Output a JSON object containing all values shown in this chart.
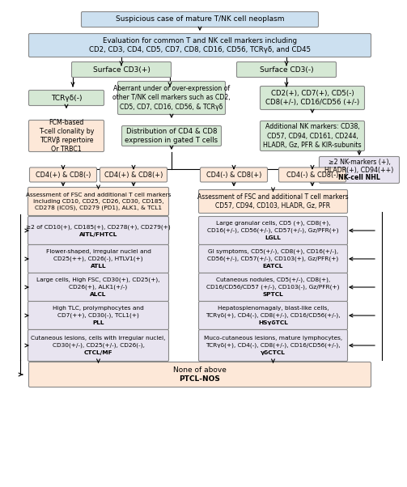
{
  "colors": {
    "bg": "#ffffff",
    "blue": "#cce0f0",
    "green": "#d5e8d4",
    "pink": "#fde8d8",
    "lavender": "#e8e4f0"
  },
  "boxes": {
    "row1": {
      "text": "Suspicious case of mature T/NK cell neoplasm",
      "color": "blue"
    },
    "row2": {
      "text": "Evaluation for common T and NK cell markers including\nCD2, CD3, CD4, CD5, CD7, CD8, CD16, CD56, TCRγδ, and CD45",
      "color": "blue"
    },
    "cd3pos": {
      "text": "Surface CD3(+)",
      "color": "green"
    },
    "cd3neg": {
      "text": "Surface CD3(-)",
      "color": "green"
    },
    "tcr_neg": {
      "text": "TCRγδ(-)",
      "color": "green"
    },
    "aberrant": {
      "text": "Aberrant under or over-expression of\nother T/NK cell markers such as CD2,\nCD5, CD7, CD16, CD56, & TCRγδ",
      "color": "green"
    },
    "cd2pos": {
      "text": "CD2(+), CD7(+), CD5(-)\nCD8(+/-), CD16/CD56 (+/-)",
      "color": "green"
    },
    "fcm": {
      "text": "FCM-based\nT-cell clonality by\nTCRVβ repertoire\nOr TRBC1",
      "color": "pink"
    },
    "dist": {
      "text": "Distribution of CD4 & CD8\nexpression in gated T cells",
      "color": "green"
    },
    "addnk": {
      "text": "Additional NK markers: CD38,\nCD57, CD94, CD161, CD244,\nHLADR, Gz, PFR & KIR-subunits",
      "color": "green"
    },
    "nknhl": {
      "text": "≥2 NK-markers (+),\nHLADR(+), CD94(++)\nNK-cell NHL",
      "color": "lavender"
    },
    "cd4p_cd8m": {
      "text": "CD4(+) & CD8(-)",
      "color": "pink"
    },
    "cd4p_cd8p": {
      "text": "CD4(+) & CD8(+)",
      "color": "pink"
    },
    "cd4m_cd8p": {
      "text": "CD4(-) & CD8(+)",
      "color": "pink"
    },
    "cd4m_cd8m": {
      "text": "CD4(-) & CD8(-)",
      "color": "pink"
    },
    "assess_left": {
      "text": "Assessment of FSC and additional T cell markers\nincluding CD10, CD25, CD26, CD30, CD185,\nCD278 (ICOS), CD279 (PD1), ALK1, & TCL1",
      "color": "pink"
    },
    "assess_right": {
      "text": "Assessment of FSC and additional T cell markers\nCD57, CD94, CD103, HLADR, Gz, PFR",
      "color": "pink"
    },
    "aitl": {
      "text": "≥2 of CD10(+), CD185(+), CD278(+), CD279(+)\nAITL/FHTCL",
      "color": "lavender"
    },
    "atll": {
      "text": "Flower-shaped, irregular nuclei and\nCD25(++), CD26(-), HTLV1(+)\nATLL",
      "color": "lavender"
    },
    "alcl": {
      "text": "Large cells, High FSC, CD30(+), CD25(+),\nCD26(+), ALK1(+/-)\nALCL",
      "color": "lavender"
    },
    "pll": {
      "text": "High TLC, prolymphocytes and\nCD7(++), CD30(-), TCL1(+)\nPLL",
      "color": "lavender"
    },
    "ctcl": {
      "text": "Cutaneous lesions, cells with irregular nuclei,\nCD30(+/-), CD25(+/-), CD26(-),\nCTCL/MF",
      "color": "lavender"
    },
    "lgll": {
      "text": "Large granular cells, CD5 (+), CD8(+),\nCD16(+/-), CD56(+/-), CD57(+/-), Gz/PFR(+)\nLGLL",
      "color": "lavender"
    },
    "eatcl": {
      "text": "GI symptoms, CD5(+/-), CD8(+), CD16(+/-),\nCD56(+/-), CD57(+/-), CD103(+), Gz/PFR(+)\nEATCL",
      "color": "lavender"
    },
    "sptcl": {
      "text": "Cutaneous nodules, CD5(+/-), CD8(+),\nCD16/CD56/CD57 (+/-), CD103(-), Gz/PFR(+)\nSPTCL",
      "color": "lavender"
    },
    "hsgtcl": {
      "text": "Hepatosplenomagaly, blast-like cells,\nTCRγδ(+), CD4(-), CD8(+/-), CD16/CD56(+/-),\nHSγδTCL",
      "color": "lavender"
    },
    "gdctcl": {
      "text": "Muco-cutaneous lesions, mature lymphocytes,\nTCRγδ(+), CD4(-), CD8(+/-), CD16/CD56(+/-),\nγδCTCL",
      "color": "lavender"
    },
    "none_above": {
      "text": "None of above\nPTCL-NOS",
      "color": "pink"
    }
  }
}
